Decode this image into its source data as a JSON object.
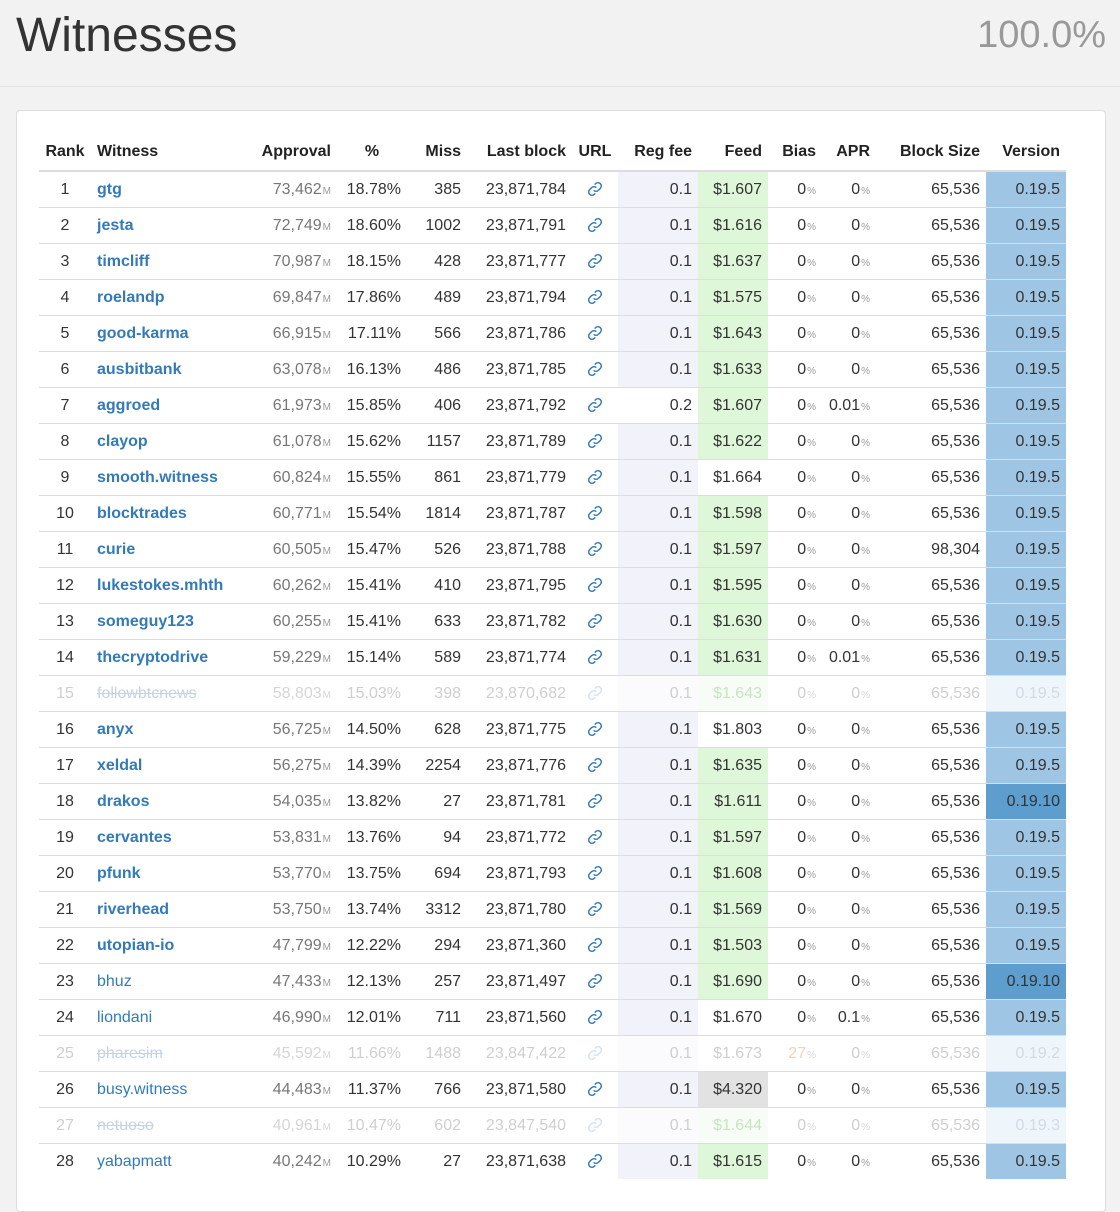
{
  "header": {
    "title": "Witnesses",
    "participation": "100.0%"
  },
  "columns": {
    "rank": "Rank",
    "witness": "Witness",
    "approval": "Approval",
    "percent": "%",
    "miss": "Miss",
    "last_block": "Last block",
    "url": "URL",
    "reg_fee": "Reg fee",
    "feed": "Feed",
    "bias": "Bias",
    "apr": "APR",
    "block_size": "Block Size",
    "version": "Version"
  },
  "units": {
    "approval": "M",
    "percent_sign": "%"
  },
  "icons": {
    "url": "link-icon"
  },
  "rows": [
    {
      "rank": "1",
      "name": "gtg",
      "approval": "73,462",
      "pct": "18.78%",
      "miss": "385",
      "last_block": "23,871,784",
      "reg_fee": "0.1",
      "feed": "$1.607",
      "bias": "0",
      "apr": "0",
      "block_size": "65,536",
      "version": "0.19.5"
    },
    {
      "rank": "2",
      "name": "jesta",
      "approval": "72,749",
      "pct": "18.60%",
      "miss": "1002",
      "last_block": "23,871,791",
      "reg_fee": "0.1",
      "feed": "$1.616",
      "bias": "0",
      "apr": "0",
      "block_size": "65,536",
      "version": "0.19.5"
    },
    {
      "rank": "3",
      "name": "timcliff",
      "approval": "70,987",
      "pct": "18.15%",
      "miss": "428",
      "last_block": "23,871,777",
      "reg_fee": "0.1",
      "feed": "$1.637",
      "bias": "0",
      "apr": "0",
      "block_size": "65,536",
      "version": "0.19.5"
    },
    {
      "rank": "4",
      "name": "roelandp",
      "approval": "69,847",
      "pct": "17.86%",
      "miss": "489",
      "last_block": "23,871,794",
      "reg_fee": "0.1",
      "feed": "$1.575",
      "bias": "0",
      "apr": "0",
      "block_size": "65,536",
      "version": "0.19.5"
    },
    {
      "rank": "5",
      "name": "good-karma",
      "approval": "66,915",
      "pct": "17.11%",
      "miss": "566",
      "last_block": "23,871,786",
      "reg_fee": "0.1",
      "feed": "$1.643",
      "bias": "0",
      "apr": "0",
      "block_size": "65,536",
      "version": "0.19.5"
    },
    {
      "rank": "6",
      "name": "ausbitbank",
      "approval": "63,078",
      "pct": "16.13%",
      "miss": "486",
      "last_block": "23,871,785",
      "reg_fee": "0.1",
      "feed": "$1.633",
      "bias": "0",
      "apr": "0",
      "block_size": "65,536",
      "version": "0.19.5"
    },
    {
      "rank": "7",
      "name": "aggroed",
      "approval": "61,973",
      "pct": "15.85%",
      "miss": "406",
      "last_block": "23,871,792",
      "reg_fee": "0.2",
      "feed": "$1.607",
      "bias": "0",
      "apr": "0.01",
      "block_size": "65,536",
      "version": "0.19.5",
      "regfee_white": true,
      "apr_white": true
    },
    {
      "rank": "8",
      "name": "clayop",
      "approval": "61,078",
      "pct": "15.62%",
      "miss": "1157",
      "last_block": "23,871,789",
      "reg_fee": "0.1",
      "feed": "$1.622",
      "bias": "0",
      "apr": "0",
      "block_size": "65,536",
      "version": "0.19.5"
    },
    {
      "rank": "9",
      "name": "smooth.witness",
      "approval": "60,824",
      "pct": "15.55%",
      "miss": "861",
      "last_block": "23,871,779",
      "reg_fee": "0.1",
      "feed": "$1.664",
      "bias": "0",
      "apr": "0",
      "block_size": "65,536",
      "version": "0.19.5",
      "feed_white": true
    },
    {
      "rank": "10",
      "name": "blocktrades",
      "approval": "60,771",
      "pct": "15.54%",
      "miss": "1814",
      "last_block": "23,871,787",
      "reg_fee": "0.1",
      "feed": "$1.598",
      "bias": "0",
      "apr": "0",
      "block_size": "65,536",
      "version": "0.19.5"
    },
    {
      "rank": "11",
      "name": "curie",
      "approval": "60,505",
      "pct": "15.47%",
      "miss": "526",
      "last_block": "23,871,788",
      "reg_fee": "0.1",
      "feed": "$1.597",
      "bias": "0",
      "apr": "0",
      "block_size": "98,304",
      "version": "0.19.5",
      "blocksize_white": true
    },
    {
      "rank": "12",
      "name": "lukestokes.mhth",
      "approval": "60,262",
      "pct": "15.41%",
      "miss": "410",
      "last_block": "23,871,795",
      "reg_fee": "0.1",
      "feed": "$1.595",
      "bias": "0",
      "apr": "0",
      "block_size": "65,536",
      "version": "0.19.5"
    },
    {
      "rank": "13",
      "name": "someguy123",
      "approval": "60,255",
      "pct": "15.41%",
      "miss": "633",
      "last_block": "23,871,782",
      "reg_fee": "0.1",
      "feed": "$1.630",
      "bias": "0",
      "apr": "0",
      "block_size": "65,536",
      "version": "0.19.5"
    },
    {
      "rank": "14",
      "name": "thecryptodrive",
      "approval": "59,229",
      "pct": "15.14%",
      "miss": "589",
      "last_block": "23,871,774",
      "reg_fee": "0.1",
      "feed": "$1.631",
      "bias": "0",
      "apr": "0.01",
      "block_size": "65,536",
      "version": "0.19.5",
      "apr_white": true
    },
    {
      "rank": "15",
      "name": "followbtcnews",
      "approval": "58,803",
      "pct": "15.03%",
      "miss": "398",
      "last_block": "23,870,682",
      "reg_fee": "0.1",
      "feed": "$1.643",
      "bias": "0",
      "apr": "0",
      "block_size": "65,536",
      "version": "0.19.5",
      "disabled": true
    },
    {
      "rank": "16",
      "name": "anyx",
      "approval": "56,725",
      "pct": "14.50%",
      "miss": "628",
      "last_block": "23,871,775",
      "reg_fee": "0.1",
      "feed": "$1.803",
      "bias": "0",
      "apr": "0",
      "block_size": "65,536",
      "version": "0.19.5",
      "feed_white": true
    },
    {
      "rank": "17",
      "name": "xeldal",
      "approval": "56,275",
      "pct": "14.39%",
      "miss": "2254",
      "last_block": "23,871,776",
      "reg_fee": "0.1",
      "feed": "$1.635",
      "bias": "0",
      "apr": "0",
      "block_size": "65,536",
      "version": "0.19.5"
    },
    {
      "rank": "18",
      "name": "drakos",
      "approval": "54,035",
      "pct": "13.82%",
      "miss": "27",
      "last_block": "23,871,781",
      "reg_fee": "0.1",
      "feed": "$1.611",
      "bias": "0",
      "apr": "0",
      "block_size": "65,536",
      "version": "0.19.10",
      "version_dark": true
    },
    {
      "rank": "19",
      "name": "cervantes",
      "approval": "53,831",
      "pct": "13.76%",
      "miss": "94",
      "last_block": "23,871,772",
      "reg_fee": "0.1",
      "feed": "$1.597",
      "bias": "0",
      "apr": "0",
      "block_size": "65,536",
      "version": "0.19.5"
    },
    {
      "rank": "20",
      "name": "pfunk",
      "approval": "53,770",
      "pct": "13.75%",
      "miss": "694",
      "last_block": "23,871,793",
      "reg_fee": "0.1",
      "feed": "$1.608",
      "bias": "0",
      "apr": "0",
      "block_size": "65,536",
      "version": "0.19.5"
    },
    {
      "rank": "21",
      "name": "riverhead",
      "approval": "53,750",
      "pct": "13.74%",
      "miss": "3312",
      "last_block": "23,871,780",
      "reg_fee": "0.1",
      "feed": "$1.569",
      "bias": "0",
      "apr": "0",
      "block_size": "65,536",
      "version": "0.19.5"
    },
    {
      "rank": "22",
      "name": "utopian-io",
      "approval": "47,799",
      "pct": "12.22%",
      "miss": "294",
      "last_block": "23,871,360",
      "reg_fee": "0.1",
      "feed": "$1.503",
      "bias": "0",
      "apr": "0",
      "block_size": "65,536",
      "version": "0.19.5"
    },
    {
      "rank": "23",
      "name": "bhuz",
      "approval": "47,433",
      "pct": "12.13%",
      "miss": "257",
      "last_block": "23,871,497",
      "reg_fee": "0.1",
      "feed": "$1.690",
      "bias": "0",
      "apr": "0",
      "block_size": "65,536",
      "version": "0.19.10",
      "version_dark": true,
      "plain": true
    },
    {
      "rank": "24",
      "name": "liondani",
      "approval": "46,990",
      "pct": "12.01%",
      "miss": "711",
      "last_block": "23,871,560",
      "reg_fee": "0.1",
      "feed": "$1.670",
      "bias": "0",
      "apr": "0.1",
      "block_size": "65,536",
      "version": "0.19.5",
      "apr_white": true,
      "feed_white": true,
      "plain": true
    },
    {
      "rank": "25",
      "name": "pharesim",
      "approval": "45,592",
      "pct": "11.66%",
      "miss": "1488",
      "last_block": "23,847,422",
      "reg_fee": "0.1",
      "feed": "$1.673",
      "bias": "27",
      "apr": "0",
      "block_size": "65,536",
      "version": "0.19.2",
      "disabled": true,
      "bias_hot": true,
      "feed_white": true
    },
    {
      "rank": "26",
      "name": "busy.witness",
      "approval": "44,483",
      "pct": "11.37%",
      "miss": "766",
      "last_block": "23,871,580",
      "reg_fee": "0.1",
      "feed": "$4.320",
      "bias": "0",
      "apr": "0",
      "block_size": "65,536",
      "version": "0.19.5",
      "feed_gray": true,
      "plain": true
    },
    {
      "rank": "27",
      "name": "netuoso",
      "approval": "40,961",
      "pct": "10.47%",
      "miss": "602",
      "last_block": "23,847,540",
      "reg_fee": "0.1",
      "feed": "$1.644",
      "bias": "0",
      "apr": "0",
      "block_size": "65,536",
      "version": "0.19.3",
      "disabled": true
    },
    {
      "rank": "28",
      "name": "yabapmatt",
      "approval": "40,242",
      "pct": "10.29%",
      "miss": "27",
      "last_block": "23,871,638",
      "reg_fee": "0.1",
      "feed": "$1.615",
      "bias": "0",
      "apr": "0",
      "block_size": "65,536",
      "version": "0.19.5",
      "plain": true
    }
  ]
}
